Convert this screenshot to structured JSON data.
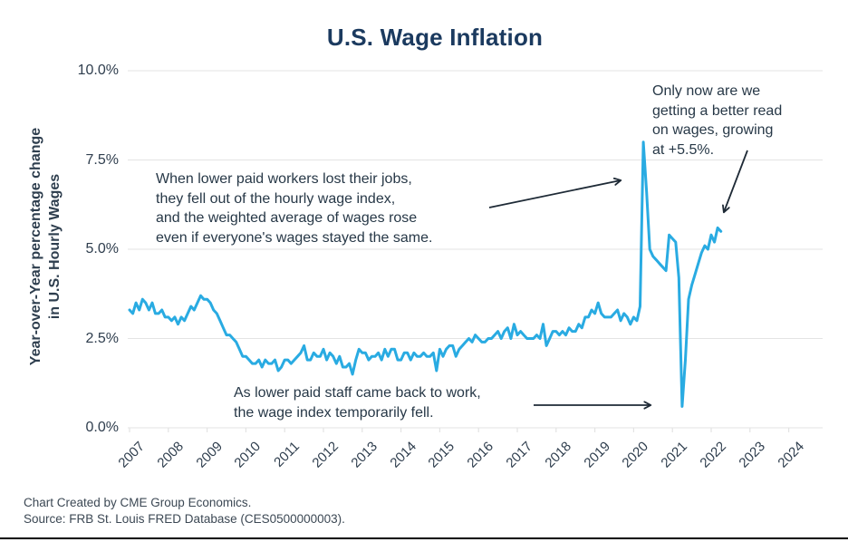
{
  "footer": {
    "line1": "Chart Created by CME Group Economics.",
    "line2": "Source: FRB St. Louis FRED Database (CES0500000003)."
  },
  "colors": {
    "line": "#29ABE2",
    "title": "#1B3A5F",
    "annotation_text": "#273847",
    "tick_text": "#2F3E4E",
    "grid": "#E3E3E3",
    "arrow": "#1E2A36"
  },
  "chart_data": {
    "type": "line",
    "title": "U.S. Wage Inflation",
    "ylabel_lines": [
      "Year-over-Year percentage change",
      "in U.S. Hourly Wages"
    ],
    "xlabel": "",
    "y_tick_labels": [
      "10.0%",
      "7.5%",
      "5.0%",
      "2.5%",
      "0.0%"
    ],
    "x_tick_labels": [
      "2007",
      "2008",
      "2009",
      "2010",
      "2011",
      "2012",
      "2013",
      "2014",
      "2015",
      "2016",
      "2017",
      "2018",
      "2019",
      "2020",
      "2021",
      "2022",
      "2023",
      "2024"
    ],
    "ylim": [
      0,
      10
    ],
    "grid": "horizontal",
    "legend": "none",
    "x_range": {
      "start": "2007-01",
      "end": "2022-04",
      "frequency": "monthly"
    },
    "series": [
      {
        "name": "U.S. Hourly Wages, year-over-year % change",
        "color": "#29ABE2",
        "values": [
          3.3,
          3.2,
          3.5,
          3.3,
          3.6,
          3.5,
          3.3,
          3.5,
          3.2,
          3.2,
          3.3,
          3.1,
          3.1,
          3.0,
          3.1,
          2.9,
          3.1,
          3.0,
          3.2,
          3.4,
          3.3,
          3.5,
          3.7,
          3.6,
          3.6,
          3.5,
          3.3,
          3.2,
          3.0,
          2.8,
          2.6,
          2.6,
          2.5,
          2.4,
          2.2,
          2.0,
          2.0,
          1.9,
          1.8,
          1.8,
          1.9,
          1.7,
          1.9,
          1.8,
          1.8,
          1.9,
          1.6,
          1.7,
          1.9,
          1.9,
          1.8,
          1.9,
          2.0,
          2.1,
          2.3,
          1.9,
          1.9,
          2.1,
          2.0,
          2.0,
          2.2,
          1.9,
          2.1,
          2.0,
          1.8,
          2.0,
          1.7,
          1.7,
          1.8,
          1.5,
          1.9,
          2.2,
          2.1,
          2.1,
          1.9,
          2.0,
          2.0,
          2.1,
          1.9,
          2.2,
          2.0,
          2.2,
          2.2,
          1.9,
          1.9,
          2.1,
          2.1,
          1.9,
          2.1,
          2.0,
          2.0,
          2.1,
          2.0,
          2.0,
          2.1,
          1.6,
          2.2,
          2.0,
          2.2,
          2.3,
          2.3,
          2.0,
          2.2,
          2.3,
          2.4,
          2.5,
          2.4,
          2.6,
          2.5,
          2.4,
          2.4,
          2.5,
          2.5,
          2.6,
          2.7,
          2.5,
          2.7,
          2.8,
          2.5,
          2.9,
          2.6,
          2.7,
          2.6,
          2.5,
          2.5,
          2.5,
          2.6,
          2.5,
          2.9,
          2.3,
          2.5,
          2.7,
          2.7,
          2.6,
          2.7,
          2.6,
          2.8,
          2.7,
          2.7,
          2.9,
          2.8,
          3.1,
          3.1,
          3.3,
          3.2,
          3.5,
          3.2,
          3.1,
          3.1,
          3.1,
          3.2,
          3.3,
          3.0,
          3.2,
          3.1,
          2.9,
          3.1,
          3.0,
          3.4,
          8.0,
          6.6,
          5.0,
          4.8,
          4.7,
          4.6,
          4.5,
          4.4,
          5.4,
          5.3,
          5.2,
          4.2,
          0.6,
          1.9,
          3.6,
          4.0,
          4.3,
          4.6,
          4.9,
          5.1,
          5.0,
          5.4,
          5.2,
          5.6,
          5.5
        ]
      }
    ],
    "annotations": [
      {
        "id": "jobs-lost",
        "lines": [
          "When lower paid workers lost their jobs,",
          "they fell out of the hourly wage index,",
          "and the weighted average of wages rose",
          "even if everyone's wages stayed the same."
        ]
      },
      {
        "id": "better-read",
        "lines": [
          "Only now are we",
          "getting a better read",
          "on wages, growing",
          "at +5.5%."
        ]
      },
      {
        "id": "came-back",
        "lines": [
          "As lower paid staff came back to work,",
          "the wage index temporarily fell."
        ]
      }
    ]
  }
}
